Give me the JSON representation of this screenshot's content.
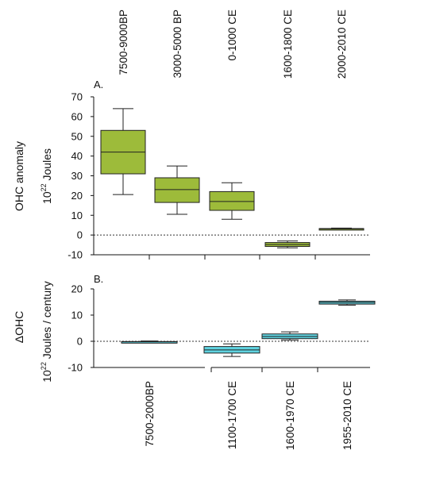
{
  "chart_data": [
    {
      "type": "boxplot",
      "panel_label": "A.",
      "ylabel": "OHC anomaly",
      "yunit_base": "10",
      "yunit_exp": "22",
      "yunit_text": "Joules",
      "ylim": [
        -10,
        70
      ],
      "yticks": [
        70,
        60,
        50,
        40,
        30,
        20,
        10,
        0,
        -10
      ],
      "zero_line": true,
      "color": "#9dbb3a",
      "categories": [
        "7500-9000BP",
        "3000-5000 BP",
        "0-1000 CE",
        "1600-1800 CE",
        "2000-2010 CE"
      ],
      "boxes": [
        {
          "whisker_low": 20.5,
          "q1": 31,
          "median": 42,
          "q3": 53,
          "whisker_high": 64
        },
        {
          "whisker_low": 10.5,
          "q1": 16.5,
          "median": 23,
          "q3": 29,
          "whisker_high": 35
        },
        {
          "whisker_low": 8,
          "q1": 12.5,
          "median": 17,
          "q3": 22,
          "whisker_high": 26.5
        },
        {
          "whisker_low": -6.5,
          "q1": -5.8,
          "median": -4.8,
          "q3": -3.8,
          "whisker_high": -3
        },
        {
          "whisker_low": 2.7,
          "q1": 2.9,
          "median": 3.1,
          "q3": 3.3,
          "whisker_high": 3.5
        }
      ]
    },
    {
      "type": "boxplot",
      "panel_label": "B.",
      "ylabel": "ΔOHC",
      "yunit_base": "10",
      "yunit_exp": "22",
      "yunit_text": "Joules / century",
      "ylim": [
        -10,
        20
      ],
      "yticks": [
        20,
        10,
        0,
        -10
      ],
      "zero_line": true,
      "color": "#5fd3e0",
      "categories": [
        "7500-2000BP",
        "1100-1700 CE",
        "1600-1970 CE",
        "1955-2010 CE"
      ],
      "boxes": [
        {
          "whisker_low": -0.5,
          "q1": -0.4,
          "median": -0.2,
          "q3": -0.1,
          "whisker_high": 0.1
        },
        {
          "whisker_low": -5.8,
          "q1": -4.5,
          "median": -3.3,
          "q3": -2,
          "whisker_high": -1
        },
        {
          "whisker_low": 0.5,
          "q1": 1,
          "median": 1.8,
          "q3": 2.8,
          "whisker_high": 3.6
        },
        {
          "whisker_low": 13.8,
          "q1": 14.2,
          "median": 14.8,
          "q3": 15.3,
          "whisker_high": 15.8
        }
      ]
    }
  ]
}
